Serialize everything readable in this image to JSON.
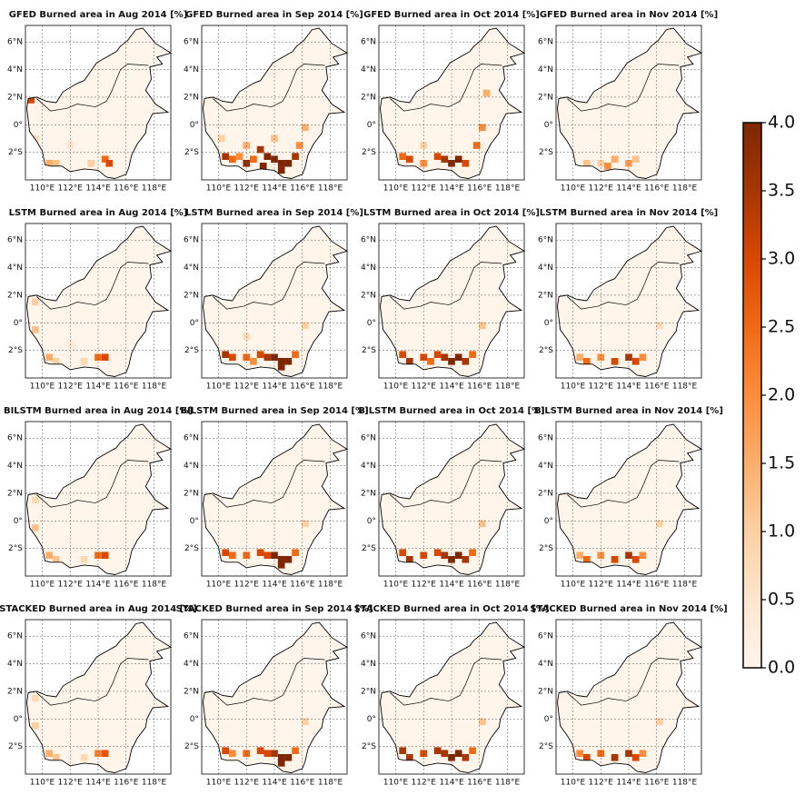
{
  "axes": {
    "xlim": [
      108.8,
      119.2
    ],
    "ylim": [
      -4,
      7.2
    ],
    "lon_ticks": [
      {
        "value": 110,
        "label": "110°E"
      },
      {
        "value": 112,
        "label": "112°E"
      },
      {
        "value": 114,
        "label": "114°E"
      },
      {
        "value": 116,
        "label": "116°E"
      },
      {
        "value": 118,
        "label": "118°E"
      }
    ],
    "lat_ticks": [
      {
        "value": 6,
        "label": "6°N"
      },
      {
        "value": 4,
        "label": "4°N"
      },
      {
        "value": 2,
        "label": "2°N"
      },
      {
        "value": 0,
        "label": "0°"
      },
      {
        "value": -2,
        "label": "2°S"
      }
    ]
  },
  "colorbar": {
    "lim": [
      0,
      4
    ],
    "cmap": "Oranges",
    "colors": [
      "#fff5eb",
      "#fee6ce",
      "#fdd0a2",
      "#fdae6b",
      "#fd8d3c",
      "#f16913",
      "#d94801",
      "#a63603",
      "#7f2704"
    ],
    "ticks": [
      {
        "value": 0,
        "label": "0.0"
      },
      0.5,
      {
        "value": 1,
        "label": "1.0"
      },
      1.5,
      {
        "value": 2,
        "label": "2.0"
      },
      2.5,
      {
        "value": 3,
        "label": "3.0"
      },
      3.5,
      {
        "value": 4,
        "label": "4.0"
      }
    ]
  },
  "panels": [
    {
      "title": "GFED Burned area in Aug 2014 [%]",
      "cells": [
        [
          109.2,
          1.8,
          3
        ],
        [
          110.5,
          -2.8,
          1.5
        ],
        [
          111,
          -2.8,
          1.2
        ],
        [
          113.5,
          -2.8,
          1
        ],
        [
          114.5,
          -2.5,
          2.5
        ],
        [
          114.8,
          -2.8,
          3
        ],
        [
          109.5,
          -1,
          0.8
        ],
        [
          112,
          -1.5,
          0.5
        ]
      ]
    },
    {
      "title": "GFED Burned area in Sep 2014 [%]",
      "cells": [
        [
          110.5,
          -2.3,
          3.5
        ],
        [
          111,
          -2.5,
          2.5
        ],
        [
          111.5,
          -2.3,
          2
        ],
        [
          112,
          -2.8,
          3.8
        ],
        [
          112.5,
          -2.5,
          2.5
        ],
        [
          113,
          -1.8,
          3.5
        ],
        [
          113.5,
          -2.3,
          4
        ],
        [
          114,
          -2.5,
          4
        ],
        [
          114.5,
          -2.8,
          4
        ],
        [
          115,
          -2.8,
          4
        ],
        [
          115.5,
          -2.3,
          3.5
        ],
        [
          115.8,
          -1.5,
          2
        ],
        [
          116.2,
          -0.2,
          1.5
        ],
        [
          113.2,
          -3,
          4
        ],
        [
          114.5,
          -3.3,
          4
        ],
        [
          110.2,
          -1,
          1
        ],
        [
          112,
          -1.5,
          1.5
        ],
        [
          114,
          -1,
          1.2
        ]
      ]
    },
    {
      "title": "GFED Burned area in Oct 2014 [%]",
      "cells": [
        [
          110.5,
          -2.3,
          2.5
        ],
        [
          111,
          -2.5,
          3
        ],
        [
          112,
          -2.8,
          2
        ],
        [
          113,
          -2.3,
          3
        ],
        [
          113.5,
          -2.5,
          3.5
        ],
        [
          114,
          -2.8,
          4
        ],
        [
          114.5,
          -2.5,
          4
        ],
        [
          115,
          -2.8,
          3
        ],
        [
          115.8,
          -1.5,
          2.5
        ],
        [
          116.2,
          -0.2,
          2
        ],
        [
          116.5,
          2.3,
          1.5
        ],
        [
          112,
          -1.5,
          1
        ]
      ]
    },
    {
      "title": "GFED Burned area in Nov 2014 [%]",
      "cells": [
        [
          111,
          -2.8,
          1.2
        ],
        [
          112,
          -2.8,
          1
        ],
        [
          113,
          -2.5,
          1.5
        ],
        [
          114,
          -2.8,
          1.8
        ],
        [
          114.5,
          -2.5,
          1.2
        ],
        [
          112.5,
          -3,
          2
        ]
      ]
    },
    {
      "title": "LSTM Burned area in Aug 2014 [%]",
      "cells": [
        [
          109.5,
          1.5,
          1
        ],
        [
          109.5,
          -0.5,
          1.2
        ],
        [
          110.5,
          -2.5,
          1.5
        ],
        [
          111,
          -2.8,
          1
        ],
        [
          114,
          -2.5,
          2.5
        ],
        [
          114.5,
          -2.5,
          3
        ],
        [
          113,
          -2.8,
          0.8
        ],
        [
          112,
          -1.5,
          0.4
        ]
      ]
    },
    {
      "title": "LSTM Burned area in Sep 2014 [%]",
      "cells": [
        [
          110.5,
          -2.3,
          3.5
        ],
        [
          111,
          -2.5,
          3
        ],
        [
          112,
          -2.5,
          2.5
        ],
        [
          112.5,
          -2.8,
          2
        ],
        [
          113,
          -2.3,
          3
        ],
        [
          113.5,
          -2.5,
          3.5
        ],
        [
          114,
          -2.5,
          4
        ],
        [
          114.5,
          -2.8,
          4
        ],
        [
          115,
          -2.8,
          4
        ],
        [
          114.5,
          -3.2,
          4
        ],
        [
          115.5,
          -2.3,
          2.5
        ],
        [
          116.2,
          -0.2,
          1
        ],
        [
          112,
          -1,
          0.8
        ]
      ]
    },
    {
      "title": "LSTM Burned area in Oct 2014 [%]",
      "cells": [
        [
          110.5,
          -2.3,
          3
        ],
        [
          111,
          -2.8,
          3.5
        ],
        [
          112,
          -2.5,
          3
        ],
        [
          112.5,
          -2.8,
          2.5
        ],
        [
          113,
          -2.3,
          3
        ],
        [
          113.5,
          -2.5,
          3.5
        ],
        [
          114,
          -2.8,
          4
        ],
        [
          114.5,
          -2.5,
          4
        ],
        [
          115,
          -2.8,
          3.5
        ],
        [
          115.5,
          -2.3,
          2.5
        ],
        [
          116.2,
          -0.2,
          1.2
        ]
      ]
    },
    {
      "title": "LSTM Burned area in Nov 2014 [%]",
      "cells": [
        [
          110.5,
          -2.5,
          1.5
        ],
        [
          111,
          -2.8,
          2.5
        ],
        [
          112,
          -2.5,
          2
        ],
        [
          113,
          -2.8,
          3
        ],
        [
          114,
          -2.5,
          3.5
        ],
        [
          114.5,
          -2.8,
          3
        ],
        [
          115,
          -2.5,
          2
        ],
        [
          116.2,
          -0.2,
          0.8
        ]
      ]
    },
    {
      "title": "BILSTM Burned area in Aug 2014 [%]",
      "cells": [
        [
          109.5,
          1.5,
          0.8
        ],
        [
          109.5,
          -0.5,
          1.2
        ],
        [
          110.5,
          -2.5,
          1.5
        ],
        [
          111,
          -2.8,
          1.2
        ],
        [
          114,
          -2.5,
          2.5
        ],
        [
          114.5,
          -2.5,
          3
        ],
        [
          113,
          -2.8,
          0.8
        ]
      ]
    },
    {
      "title": "BILSTM Burned area in Sep 2014 [%]",
      "cells": [
        [
          110.5,
          -2.3,
          3
        ],
        [
          111,
          -2.5,
          2.5
        ],
        [
          112,
          -2.5,
          2.5
        ],
        [
          113,
          -2.3,
          3
        ],
        [
          113.5,
          -2.5,
          3
        ],
        [
          114,
          -2.5,
          4
        ],
        [
          114.5,
          -2.8,
          4
        ],
        [
          115,
          -2.8,
          4
        ],
        [
          114.5,
          -3.2,
          4
        ],
        [
          115.5,
          -2.3,
          2.5
        ],
        [
          116.2,
          -0.2,
          1
        ]
      ]
    },
    {
      "title": "BILSTM Burned area in Oct 2014 [%]",
      "cells": [
        [
          110.5,
          -2.3,
          3
        ],
        [
          111,
          -2.8,
          3.5
        ],
        [
          112,
          -2.5,
          3
        ],
        [
          113,
          -2.3,
          3
        ],
        [
          113.5,
          -2.5,
          3.5
        ],
        [
          114,
          -2.8,
          4
        ],
        [
          114.5,
          -2.5,
          4
        ],
        [
          115,
          -2.8,
          3.5
        ],
        [
          115.5,
          -2.3,
          2.5
        ],
        [
          116.2,
          -0.2,
          1.2
        ]
      ]
    },
    {
      "title": "BILSTM Burned area in Nov 2014 [%]",
      "cells": [
        [
          110.5,
          -2.5,
          1.5
        ],
        [
          111,
          -2.8,
          2.5
        ],
        [
          112,
          -2.5,
          2
        ],
        [
          113,
          -2.8,
          3
        ],
        [
          114,
          -2.5,
          3.5
        ],
        [
          114.5,
          -2.8,
          3
        ],
        [
          115,
          -2.5,
          2
        ],
        [
          116.2,
          -0.2,
          1
        ]
      ]
    },
    {
      "title": "STACKED Burned area in Aug 2014 [%]",
      "cells": [
        [
          109.5,
          1.5,
          0.8
        ],
        [
          109.5,
          -0.5,
          1
        ],
        [
          110.5,
          -2.5,
          1.5
        ],
        [
          111,
          -2.8,
          1.2
        ],
        [
          114,
          -2.5,
          2.2
        ],
        [
          114.5,
          -2.5,
          2.8
        ],
        [
          113,
          -2.8,
          0.8
        ]
      ]
    },
    {
      "title": "STACKED Burned area in Sep 2014 [%]",
      "cells": [
        [
          110.5,
          -2.3,
          3
        ],
        [
          111,
          -2.5,
          2
        ],
        [
          112,
          -2.5,
          2.5
        ],
        [
          113,
          -2.3,
          3
        ],
        [
          113.5,
          -2.5,
          3
        ],
        [
          114,
          -2.5,
          3.5
        ],
        [
          114.5,
          -2.8,
          4
        ],
        [
          115,
          -2.8,
          4
        ],
        [
          114.5,
          -3.2,
          4
        ],
        [
          115.5,
          -2.3,
          2.5
        ],
        [
          116.2,
          -0.2,
          1
        ]
      ]
    },
    {
      "title": "STACKED Burned area in Oct 2014 [%]",
      "cells": [
        [
          110.5,
          -2.3,
          3.5
        ],
        [
          111,
          -2.8,
          3.5
        ],
        [
          112,
          -2.5,
          3
        ],
        [
          113,
          -2.3,
          3.5
        ],
        [
          113.5,
          -2.5,
          3.5
        ],
        [
          114,
          -2.8,
          4
        ],
        [
          114.5,
          -2.5,
          4
        ],
        [
          115,
          -2.8,
          3.5
        ],
        [
          115.5,
          -2.3,
          2.5
        ],
        [
          116.2,
          -0.2,
          1.2
        ]
      ]
    },
    {
      "title": "STACKED Burned area in Nov 2014 [%]",
      "cells": [
        [
          110.5,
          -2.5,
          2
        ],
        [
          111,
          -2.8,
          3
        ],
        [
          112,
          -2.5,
          2.5
        ],
        [
          113,
          -2.8,
          3.5
        ],
        [
          114,
          -2.5,
          3.5
        ],
        [
          114.5,
          -2.8,
          3
        ],
        [
          115,
          -2.5,
          2
        ],
        [
          116.2,
          -0.2,
          1
        ]
      ]
    }
  ]
}
